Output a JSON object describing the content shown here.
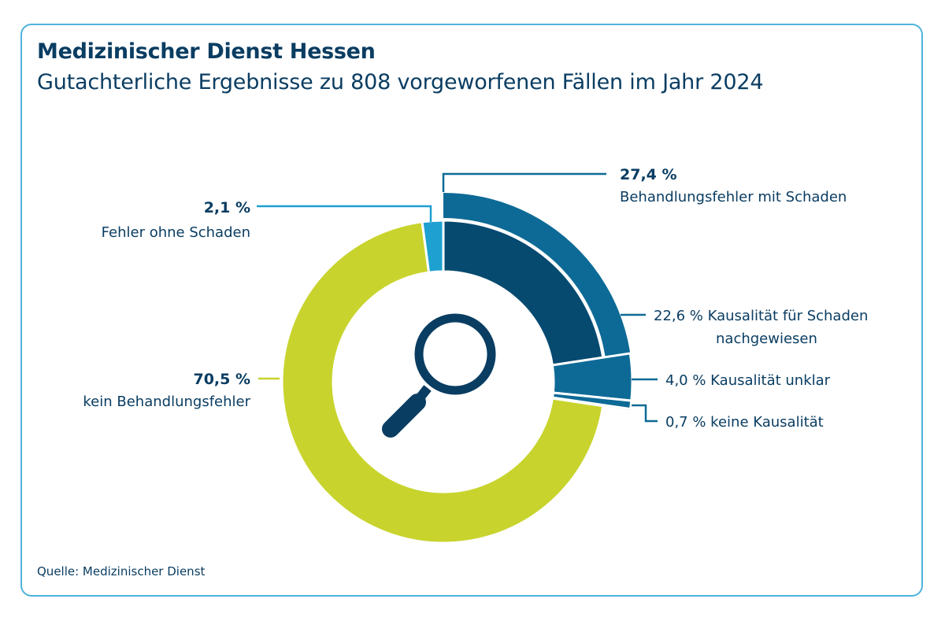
{
  "header": {
    "title": "Medizinischer Dienst Hessen",
    "subtitle": "Gutachterliche Ergebnisse zu 808 vorgeworfenen Fällen im Jahr 2024"
  },
  "footer": {
    "source": "Quelle: Medizinischer Dienst"
  },
  "colors": {
    "kein_behandlungsfehler": "#c8d42d",
    "fehler_ohne_schaden": "#1ea0d0",
    "behandlungsfehler_mit_schaden": "#0d6a96",
    "kausalitaet_nachgewiesen": "#064a70",
    "text": "#0a3d62"
  },
  "icon": "magnifier-icon",
  "chart_data": {
    "type": "pie",
    "total_cases": 808,
    "year": 2024,
    "segments": [
      {
        "name": "Behandlungsfehler mit Schaden",
        "value": 27.4,
        "value_label": "27,4 %",
        "children": [
          {
            "name": "Kausalität für Schaden nachgewiesen",
            "value": 22.6,
            "value_label": "22,6 %",
            "label_line1": "Kausalität für Schaden",
            "label_line2": "nachgewiesen"
          },
          {
            "name": "Kausalität unklar",
            "value": 4.0,
            "value_label": "4,0 %"
          },
          {
            "name": "keine Kausalität",
            "value": 0.7,
            "value_label": "0,7 %"
          }
        ]
      },
      {
        "name": "kein Behandlungsfehler",
        "value": 70.5,
        "value_label": "70,5 %"
      },
      {
        "name": "Fehler ohne Schaden",
        "value": 2.1,
        "value_label": "2,1 %"
      }
    ]
  }
}
